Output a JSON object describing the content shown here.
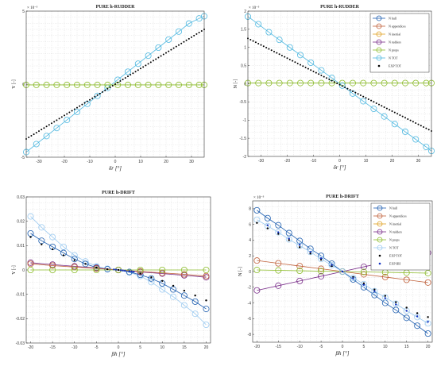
{
  "chart_data": [
    {
      "type": "line",
      "title": "PURE h-RUDDER",
      "xlabel": "δr [°]",
      "ylabel": "Y [-]",
      "y_exponent": "× 10⁻³",
      "xlim": [
        -35,
        35
      ],
      "ylim": [
        -5,
        5
      ],
      "xticks": [
        "-30",
        "-20",
        "-10",
        "0",
        "10",
        "20",
        "30"
      ],
      "yticks": [
        "-5",
        "0",
        "5"
      ],
      "grid": true,
      "legend": null,
      "series": [
        {
          "color": "#4fb8e0",
          "marker": "circle",
          "x": [
            -35,
            -31,
            -27,
            -23,
            -19,
            -15,
            -11,
            -7,
            -3,
            1,
            5,
            9,
            13,
            17,
            21,
            25,
            29,
            33,
            35
          ],
          "y": [
            -4.65,
            -4.1,
            -3.55,
            -3.0,
            -2.45,
            -1.9,
            -1.35,
            -0.8,
            -0.25,
            0.3,
            0.85,
            1.4,
            1.95,
            2.5,
            3.05,
            3.6,
            4.15,
            4.5,
            4.65
          ]
        },
        {
          "color": "#8cbc2a",
          "marker": "circle",
          "x": [
            -35,
            -31,
            -27,
            -23,
            -19,
            -15,
            -11,
            -7,
            -3,
            1,
            5,
            9,
            13,
            17,
            21,
            25,
            29,
            33,
            35
          ],
          "y": [
            -0.05,
            -0.05,
            -0.05,
            -0.05,
            -0.05,
            -0.05,
            -0.05,
            -0.05,
            -0.05,
            -0.05,
            -0.05,
            -0.05,
            -0.05,
            -0.05,
            -0.05,
            -0.05,
            -0.05,
            -0.05,
            -0.05
          ]
        },
        {
          "color": "#000000",
          "marker": "dotline",
          "x": [
            -35,
            35
          ],
          "y": [
            -3.75,
            3.75
          ]
        }
      ]
    },
    {
      "type": "line",
      "title": "PURE h-RUDDER",
      "xlabel": "δr [°]",
      "ylabel": "N [-]",
      "y_exponent": "× 10⁻³",
      "xlim": [
        -35,
        35
      ],
      "ylim": [
        -2,
        2
      ],
      "xticks": [
        "-30",
        "-20",
        "-10",
        "0",
        "10",
        "20",
        "30"
      ],
      "yticks": [
        "-2",
        "-1.5",
        "-1",
        "-0.5",
        "0",
        "0.5",
        "1",
        "1.5",
        "2"
      ],
      "grid": true,
      "legend": {
        "position": "top-right",
        "entries": [
          "N hull",
          "N appendices",
          "N inertial",
          "N rudders",
          "N props",
          "N TOT",
          "EXP TOT"
        ]
      },
      "series": [
        {
          "name": "N hull",
          "color": "#1f5fb0",
          "marker": "circle"
        },
        {
          "name": "N appendices",
          "color": "#c0603a",
          "marker": "circle"
        },
        {
          "name": "N inertial",
          "color": "#e0a020",
          "marker": "circle"
        },
        {
          "name": "N rudders",
          "color": "#7a2e8a",
          "marker": "circle"
        },
        {
          "name": "N props",
          "color": "#8cbc2a",
          "marker": "circle",
          "x": [
            -35,
            -31,
            -27,
            -23,
            -19,
            -15,
            -11,
            -7,
            -3,
            1,
            5,
            9,
            13,
            17,
            21,
            25,
            29,
            33,
            35
          ],
          "y": [
            0.02,
            0.02,
            0.02,
            0.02,
            0.02,
            0.02,
            0.02,
            0.02,
            0.02,
            0.02,
            0.02,
            0.02,
            0.02,
            0.02,
            0.02,
            0.02,
            0.02,
            0.02,
            0.02
          ]
        },
        {
          "name": "N TOT",
          "color": "#4fb8e0",
          "marker": "circle",
          "x": [
            -35,
            -31,
            -27,
            -23,
            -19,
            -15,
            -11,
            -7,
            -3,
            1,
            5,
            9,
            13,
            17,
            21,
            25,
            29,
            33,
            35
          ],
          "y": [
            1.85,
            1.64,
            1.42,
            1.21,
            1.0,
            0.79,
            0.58,
            0.37,
            0.16,
            -0.05,
            -0.27,
            -0.48,
            -0.69,
            -0.9,
            -1.11,
            -1.32,
            -1.53,
            -1.74,
            -1.85
          ]
        },
        {
          "name": "EXP TOT",
          "color": "#000000",
          "marker": "dotline",
          "x": [
            -35,
            35
          ],
          "y": [
            1.25,
            -1.3
          ]
        }
      ]
    },
    {
      "type": "line",
      "title": "PURE h-DRIFT",
      "xlabel": "βh [°]",
      "ylabel": "Y [-]",
      "xlim": [
        -21,
        21
      ],
      "ylim": [
        -0.03,
        0.03
      ],
      "xticks": [
        "-20",
        "-15",
        "-10",
        "-5",
        "0",
        "5",
        "10",
        "15",
        "20"
      ],
      "yticks": [
        "-0.03",
        "-0.02",
        "-0.01",
        "0",
        "0.01",
        "0.02",
        "0.03"
      ],
      "grid": true,
      "legend": null,
      "series": [
        {
          "color": "#9ccaf0",
          "marker": "circle",
          "x": [
            -20,
            -17.5,
            -15,
            -12.5,
            -10,
            -7.5,
            -5,
            -2.5,
            0,
            2.5,
            5,
            7.5,
            10,
            12.5,
            15,
            17.5,
            20
          ],
          "y": [
            0.022,
            0.0175,
            0.0135,
            0.0095,
            0.006,
            0.0035,
            0.0015,
            0.0005,
            0,
            -0.001,
            -0.0025,
            -0.005,
            -0.008,
            -0.011,
            -0.0145,
            -0.018,
            -0.0225
          ]
        },
        {
          "color": "#1f5fb0",
          "marker": "circle",
          "x": [
            -20,
            -17.5,
            -15,
            -12.5,
            -10,
            -7.5,
            -5,
            -2.5,
            0,
            2.5,
            5,
            7.5,
            10,
            12.5,
            15,
            17.5,
            20
          ],
          "y": [
            0.015,
            0.012,
            0.0095,
            0.007,
            0.0045,
            0.0025,
            0.001,
            0.0003,
            0,
            -0.0008,
            -0.002,
            -0.0035,
            -0.0055,
            -0.008,
            -0.0105,
            -0.013,
            -0.016
          ]
        },
        {
          "color": "#7a2e8a",
          "marker": "circle",
          "x": [
            -20,
            -15,
            -10,
            -5,
            0,
            5,
            10,
            15,
            20
          ],
          "y": [
            0.003,
            0.0022,
            0.0015,
            0.0008,
            0,
            -0.0008,
            -0.0015,
            -0.0022,
            -0.003
          ]
        },
        {
          "color": "#c0603a",
          "marker": "circle",
          "x": [
            -20,
            -15,
            -10,
            -5,
            0,
            5,
            10,
            15,
            20
          ],
          "y": [
            0.0025,
            0.0018,
            0.0012,
            0.0006,
            0,
            -0.0006,
            -0.0012,
            -0.0018,
            -0.0025
          ]
        },
        {
          "color": "#8cbc2a",
          "marker": "circle",
          "x": [
            -20,
            -15,
            -10,
            -5,
            0,
            5,
            10,
            15,
            20
          ],
          "y": [
            0,
            0,
            0,
            0,
            0,
            0,
            0,
            0,
            0
          ]
        },
        {
          "color": "#000000",
          "marker": "dot",
          "x": [
            -20,
            -17.5,
            -15,
            -12.5,
            -10,
            -7.5,
            -5,
            -2.5,
            0,
            2.5,
            5,
            7.5,
            10,
            12.5,
            15,
            17.5,
            20
          ],
          "y": [
            0.0135,
            0.0105,
            0.0085,
            0.006,
            0.004,
            0.0025,
            0.001,
            0.0003,
            0,
            -0.0005,
            -0.0015,
            -0.003,
            -0.0045,
            -0.0065,
            -0.0085,
            -0.0105,
            -0.0125
          ]
        },
        {
          "color": "#1030c0",
          "marker": "dot",
          "x": [
            -1,
            -0.5,
            0.5,
            1,
            1.5,
            2.5,
            3,
            3.5
          ],
          "y": [
            0.0002,
            0.0001,
            -0.0001,
            -0.0002,
            -0.0003,
            -0.0005,
            -0.0006,
            -0.0007
          ]
        }
      ]
    },
    {
      "type": "line",
      "title": "PURE h-DRIFT",
      "xlabel": "βh [°]",
      "ylabel": "N [-]",
      "y_exponent": "× 10⁻³",
      "xlim": [
        -21,
        21
      ],
      "ylim": [
        -9,
        9
      ],
      "xticks": [
        "-20",
        "-15",
        "-10",
        "-5",
        "0",
        "5",
        "10",
        "15",
        "20"
      ],
      "yticks": [
        "-8",
        "-6",
        "-4",
        "-2",
        "0",
        "2",
        "4",
        "6",
        "8"
      ],
      "grid": true,
      "legend": {
        "position": "top-right",
        "entries": [
          "N hull",
          "N appendices",
          "N inertial",
          "N rudders",
          "N props",
          "N TOT",
          "EXP TOT",
          "EXP HH"
        ]
      },
      "series": [
        {
          "name": "N hull",
          "color": "#1f5fb0",
          "marker": "circle",
          "x": [
            -20,
            -17.5,
            -15,
            -12.5,
            -10,
            -7.5,
            -5,
            -2.5,
            0,
            2.5,
            5,
            7.5,
            10,
            12.5,
            15,
            17.5,
            20
          ],
          "y": [
            7.8,
            6.8,
            5.9,
            4.9,
            3.9,
            2.9,
            2.0,
            1.0,
            0,
            -1.0,
            -2.0,
            -3.0,
            -4.0,
            -4.9,
            -5.9,
            -6.9,
            -7.9
          ]
        },
        {
          "name": "N appendices",
          "color": "#c0603a",
          "marker": "circle",
          "x": [
            -20,
            -15,
            -10,
            -5,
            0,
            5,
            10,
            15,
            20
          ],
          "y": [
            1.4,
            1.05,
            0.7,
            0.35,
            0,
            -0.35,
            -0.7,
            -1.05,
            -1.4
          ]
        },
        {
          "name": "N inertial",
          "color": "#e0a020",
          "marker": "circle"
        },
        {
          "name": "N rudders",
          "color": "#7a2e8a",
          "marker": "circle",
          "x": [
            -20,
            -15,
            -10,
            -5,
            0,
            5,
            10,
            15,
            20
          ],
          "y": [
            -2.4,
            -1.8,
            -1.2,
            -0.6,
            0,
            0.6,
            1.2,
            1.8,
            2.4
          ]
        },
        {
          "name": "N props",
          "color": "#8cbc2a",
          "marker": "circle",
          "x": [
            -20,
            -15,
            -10,
            -5,
            0,
            5,
            10,
            15,
            20
          ],
          "y": [
            0.2,
            0.15,
            0.1,
            0.05,
            0,
            -0.05,
            -0.1,
            -0.15,
            -0.2
          ]
        },
        {
          "name": "N TOT",
          "color": "#9ccaf0",
          "marker": "circle",
          "x": [
            -20,
            -17.5,
            -15,
            -12.5,
            -10,
            -7.5,
            -5,
            -2.5,
            0,
            2.5,
            5,
            7.5,
            10,
            12.5,
            15,
            17.5,
            20
          ],
          "y": [
            6.6,
            5.8,
            5.0,
            4.1,
            3.3,
            2.5,
            1.6,
            0.8,
            0,
            -0.8,
            -1.6,
            -2.5,
            -3.3,
            -4.1,
            -5.0,
            -5.8,
            -6.6
          ]
        },
        {
          "name": "EXP TOT",
          "color": "#000000",
          "marker": "dot",
          "x": [
            -20,
            -17.5,
            -15,
            -12.5,
            -10,
            -7.5,
            -5,
            -2.5,
            0,
            2.5,
            5,
            7.5,
            10,
            12.5,
            15,
            17.5,
            20
          ],
          "y": [
            6.2,
            5.5,
            4.8,
            4.0,
            3.1,
            2.3,
            1.5,
            0.7,
            0,
            -0.7,
            -1.5,
            -2.3,
            -3.1,
            -3.9,
            -4.6,
            -5.3,
            -5.8
          ]
        },
        {
          "name": "EXP HH",
          "color": "#1030c0",
          "marker": "dot",
          "x": [
            -17.5,
            -15,
            -12.5,
            -10,
            -7.5,
            -5,
            -2.5,
            0,
            2.5,
            5,
            7.5,
            10,
            12.5,
            15,
            17.5,
            20
          ],
          "y": [
            5.9,
            5.0,
            4.2,
            3.4,
            2.5,
            1.7,
            0.85,
            0,
            -0.85,
            -1.7,
            -2.5,
            -3.4,
            -4.2,
            -5.0,
            -5.7,
            -6.4
          ]
        }
      ]
    }
  ]
}
